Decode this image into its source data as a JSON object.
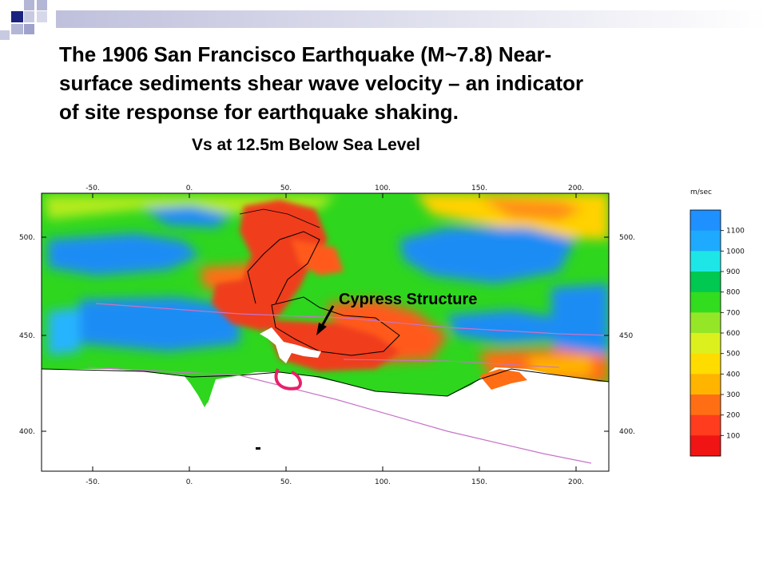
{
  "slide": {
    "title": "The 1906 San Francisco Earthquake (M~7.8) Near-surface sediments shear wave velocity – an indicator of site response for earthquake shaking.",
    "title_lines": [
      "The 1906 San Francisco Earthquake (M~7.8) Near-",
      "surface sediments shear wave velocity – an indicator",
      "of site response for earthquake shaking."
    ]
  },
  "map": {
    "heading": "Vs at 12.5m Below Sea Level",
    "annotation": "Cypress Structure",
    "x_ticks": [
      "-50.",
      "0.",
      "50.",
      "100.",
      "150.",
      "200."
    ],
    "y_ticks_left": [
      "500.",
      "450.",
      "400."
    ],
    "y_ticks_right": [
      "500.",
      "450",
      "400."
    ]
  },
  "legend": {
    "unit": "m/sec",
    "labels": [
      "1100",
      "1000",
      "900",
      "800",
      "700",
      "600",
      "500",
      "400",
      "300",
      "200",
      "100"
    ],
    "colors": [
      "#1e90ff",
      "#1eaaff",
      "#1ee6e6",
      "#00c850",
      "#32dc1e",
      "#96e628",
      "#dcf01e",
      "#ffdc00",
      "#ffb400",
      "#ff6e14",
      "#ff3c1e",
      "#f01414"
    ]
  },
  "colors": {
    "water": "#1e8cf5",
    "sediment_low": "#f03c1e",
    "deco_navy": "#1a237e",
    "deco_gray": "#a8abd0"
  }
}
